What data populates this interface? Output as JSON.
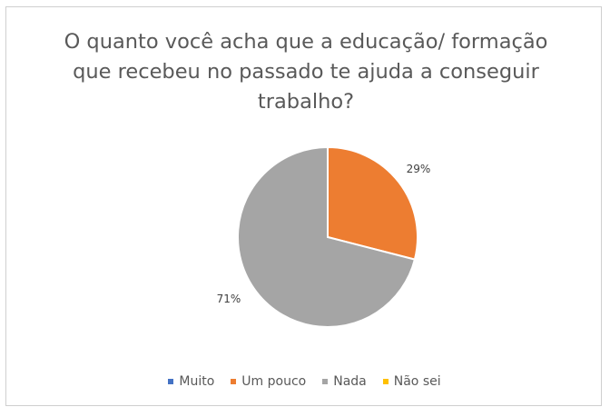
{
  "chart_data": {
    "type": "pie",
    "title": "O quanto você acha que a educação/ formação\nque recebeu no passado te ajuda a conseguir\ntrabalho?",
    "categories": [
      "Muito",
      "Um pouco",
      "Nada",
      "Não sei"
    ],
    "values": [
      0,
      29,
      71,
      0
    ],
    "data_labels": [
      "",
      "29%",
      "71%",
      ""
    ],
    "colors": [
      "#4472C4",
      "#ED7D31",
      "#A5A5A5",
      "#FFC000"
    ],
    "legend_position": "bottom"
  }
}
